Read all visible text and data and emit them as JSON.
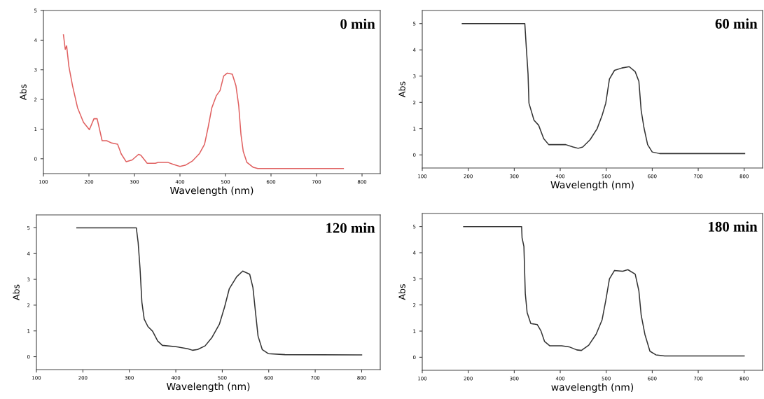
{
  "chart_data": [
    {
      "type": "line",
      "title": "0 min",
      "xlabel": "Wavelength (nm)",
      "ylabel": "Abs",
      "xlim": [
        100,
        840
      ],
      "xticks": [
        100,
        200,
        300,
        400,
        500,
        600,
        700,
        800
      ],
      "ylim": [
        -0.5,
        5
      ],
      "yticks": [
        0,
        1,
        2,
        3,
        4,
        5
      ],
      "grid": false,
      "series": [
        {
          "color": "#e06060",
          "x": [
            144,
            148,
            151,
            156,
            164,
            175,
            188,
            201,
            211,
            218,
            229,
            239,
            250,
            263,
            271,
            282,
            295,
            309,
            314,
            328,
            346,
            352,
            373,
            384,
            400,
            413,
            427,
            443,
            454,
            462,
            470,
            480,
            488,
            496,
            504,
            515,
            523,
            529,
            534,
            539,
            547,
            561,
            571,
            759
          ],
          "values": [
            4.18,
            3.69,
            3.81,
            3.11,
            2.46,
            1.72,
            1.23,
            0.98,
            1.35,
            1.35,
            0.61,
            0.61,
            0.53,
            0.49,
            0.16,
            -0.1,
            -0.04,
            0.15,
            0.12,
            -0.15,
            -0.15,
            -0.12,
            -0.12,
            -0.18,
            -0.26,
            -0.21,
            -0.08,
            0.18,
            0.49,
            1.07,
            1.72,
            2.13,
            2.3,
            2.79,
            2.89,
            2.85,
            2.46,
            1.8,
            0.82,
            0.25,
            -0.12,
            -0.29,
            -0.33,
            -0.33
          ]
        }
      ]
    },
    {
      "type": "line",
      "title": "60 min",
      "xlabel": "Wavelength (nm)",
      "ylabel": "Abs",
      "xlim": [
        100,
        840
      ],
      "xticks": [
        100,
        200,
        300,
        400,
        500,
        600,
        700,
        800
      ],
      "ylim": [
        -0.5,
        5.5
      ],
      "yticks": [
        0,
        1,
        2,
        3,
        4,
        5
      ],
      "grid": false,
      "series": [
        {
          "color": "#333333",
          "x": [
            187,
            323,
            326,
            330,
            332,
            343,
            353,
            364,
            375,
            412,
            428,
            439,
            449,
            465,
            480,
            491,
            499,
            507,
            518,
            534,
            550,
            563,
            571,
            576,
            582,
            590,
            600,
            616,
            801
          ],
          "values": [
            5,
            5,
            4.15,
            3.08,
            1.97,
            1.32,
            1.13,
            0.62,
            0.39,
            0.39,
            0.3,
            0.25,
            0.3,
            0.58,
            0.99,
            1.5,
            1.97,
            2.89,
            3.22,
            3.31,
            3.36,
            3.17,
            2.8,
            1.69,
            1.04,
            0.39,
            0.11,
            0.05,
            0.05
          ]
        }
      ]
    },
    {
      "type": "line",
      "title": "120 min",
      "xlabel": "Wavelength (nm)",
      "ylabel": "Abs",
      "xlim": [
        100,
        840
      ],
      "xticks": [
        100,
        200,
        300,
        400,
        500,
        600,
        700,
        800
      ],
      "ylim": [
        -0.5,
        5.5
      ],
      "yticks": [
        0,
        1,
        2,
        3,
        4,
        5
      ],
      "grid": false,
      "series": [
        {
          "color": "#333333",
          "x": [
            187,
            315,
            319,
            323,
            327,
            332,
            340,
            350,
            361,
            371,
            400,
            426,
            436,
            447,
            463,
            478,
            494,
            505,
            515,
            531,
            544,
            559,
            566,
            572,
            577,
            586,
            599,
            635,
            800
          ],
          "values": [
            5,
            5,
            4.42,
            3.43,
            2.11,
            1.46,
            1.17,
            0.99,
            0.61,
            0.44,
            0.39,
            0.31,
            0.25,
            0.28,
            0.42,
            0.75,
            1.27,
            1.93,
            2.63,
            3.1,
            3.32,
            3.2,
            2.68,
            1.64,
            0.8,
            0.28,
            0.12,
            0.08,
            0.07
          ]
        }
      ]
    },
    {
      "type": "line",
      "title": "180 min",
      "xlabel": "wavelength (nm)",
      "ylabel": "Abs",
      "xlim": [
        100,
        840
      ],
      "xticks": [
        100,
        200,
        300,
        400,
        500,
        600,
        700,
        800
      ],
      "ylim": [
        -0.5,
        5.5
      ],
      "yticks": [
        0,
        1,
        2,
        3,
        4,
        5
      ],
      "grid": false,
      "series": [
        {
          "color": "#333333",
          "x": [
            190,
            316,
            317,
            321,
            324,
            328,
            336,
            350,
            358,
            366,
            377,
            403,
            419,
            436,
            446,
            462,
            478,
            491,
            499,
            507,
            518,
            536,
            547,
            563,
            571,
            576,
            584,
            595,
            608,
            627,
            800
          ],
          "values": [
            5,
            5,
            4.57,
            4.24,
            2.44,
            1.71,
            1.29,
            1.25,
            1.01,
            0.6,
            0.44,
            0.44,
            0.4,
            0.28,
            0.26,
            0.46,
            0.88,
            1.43,
            2.17,
            3.0,
            3.32,
            3.29,
            3.35,
            3.18,
            2.54,
            1.61,
            0.88,
            0.23,
            0.09,
            0.05,
            0.05
          ]
        }
      ]
    }
  ]
}
